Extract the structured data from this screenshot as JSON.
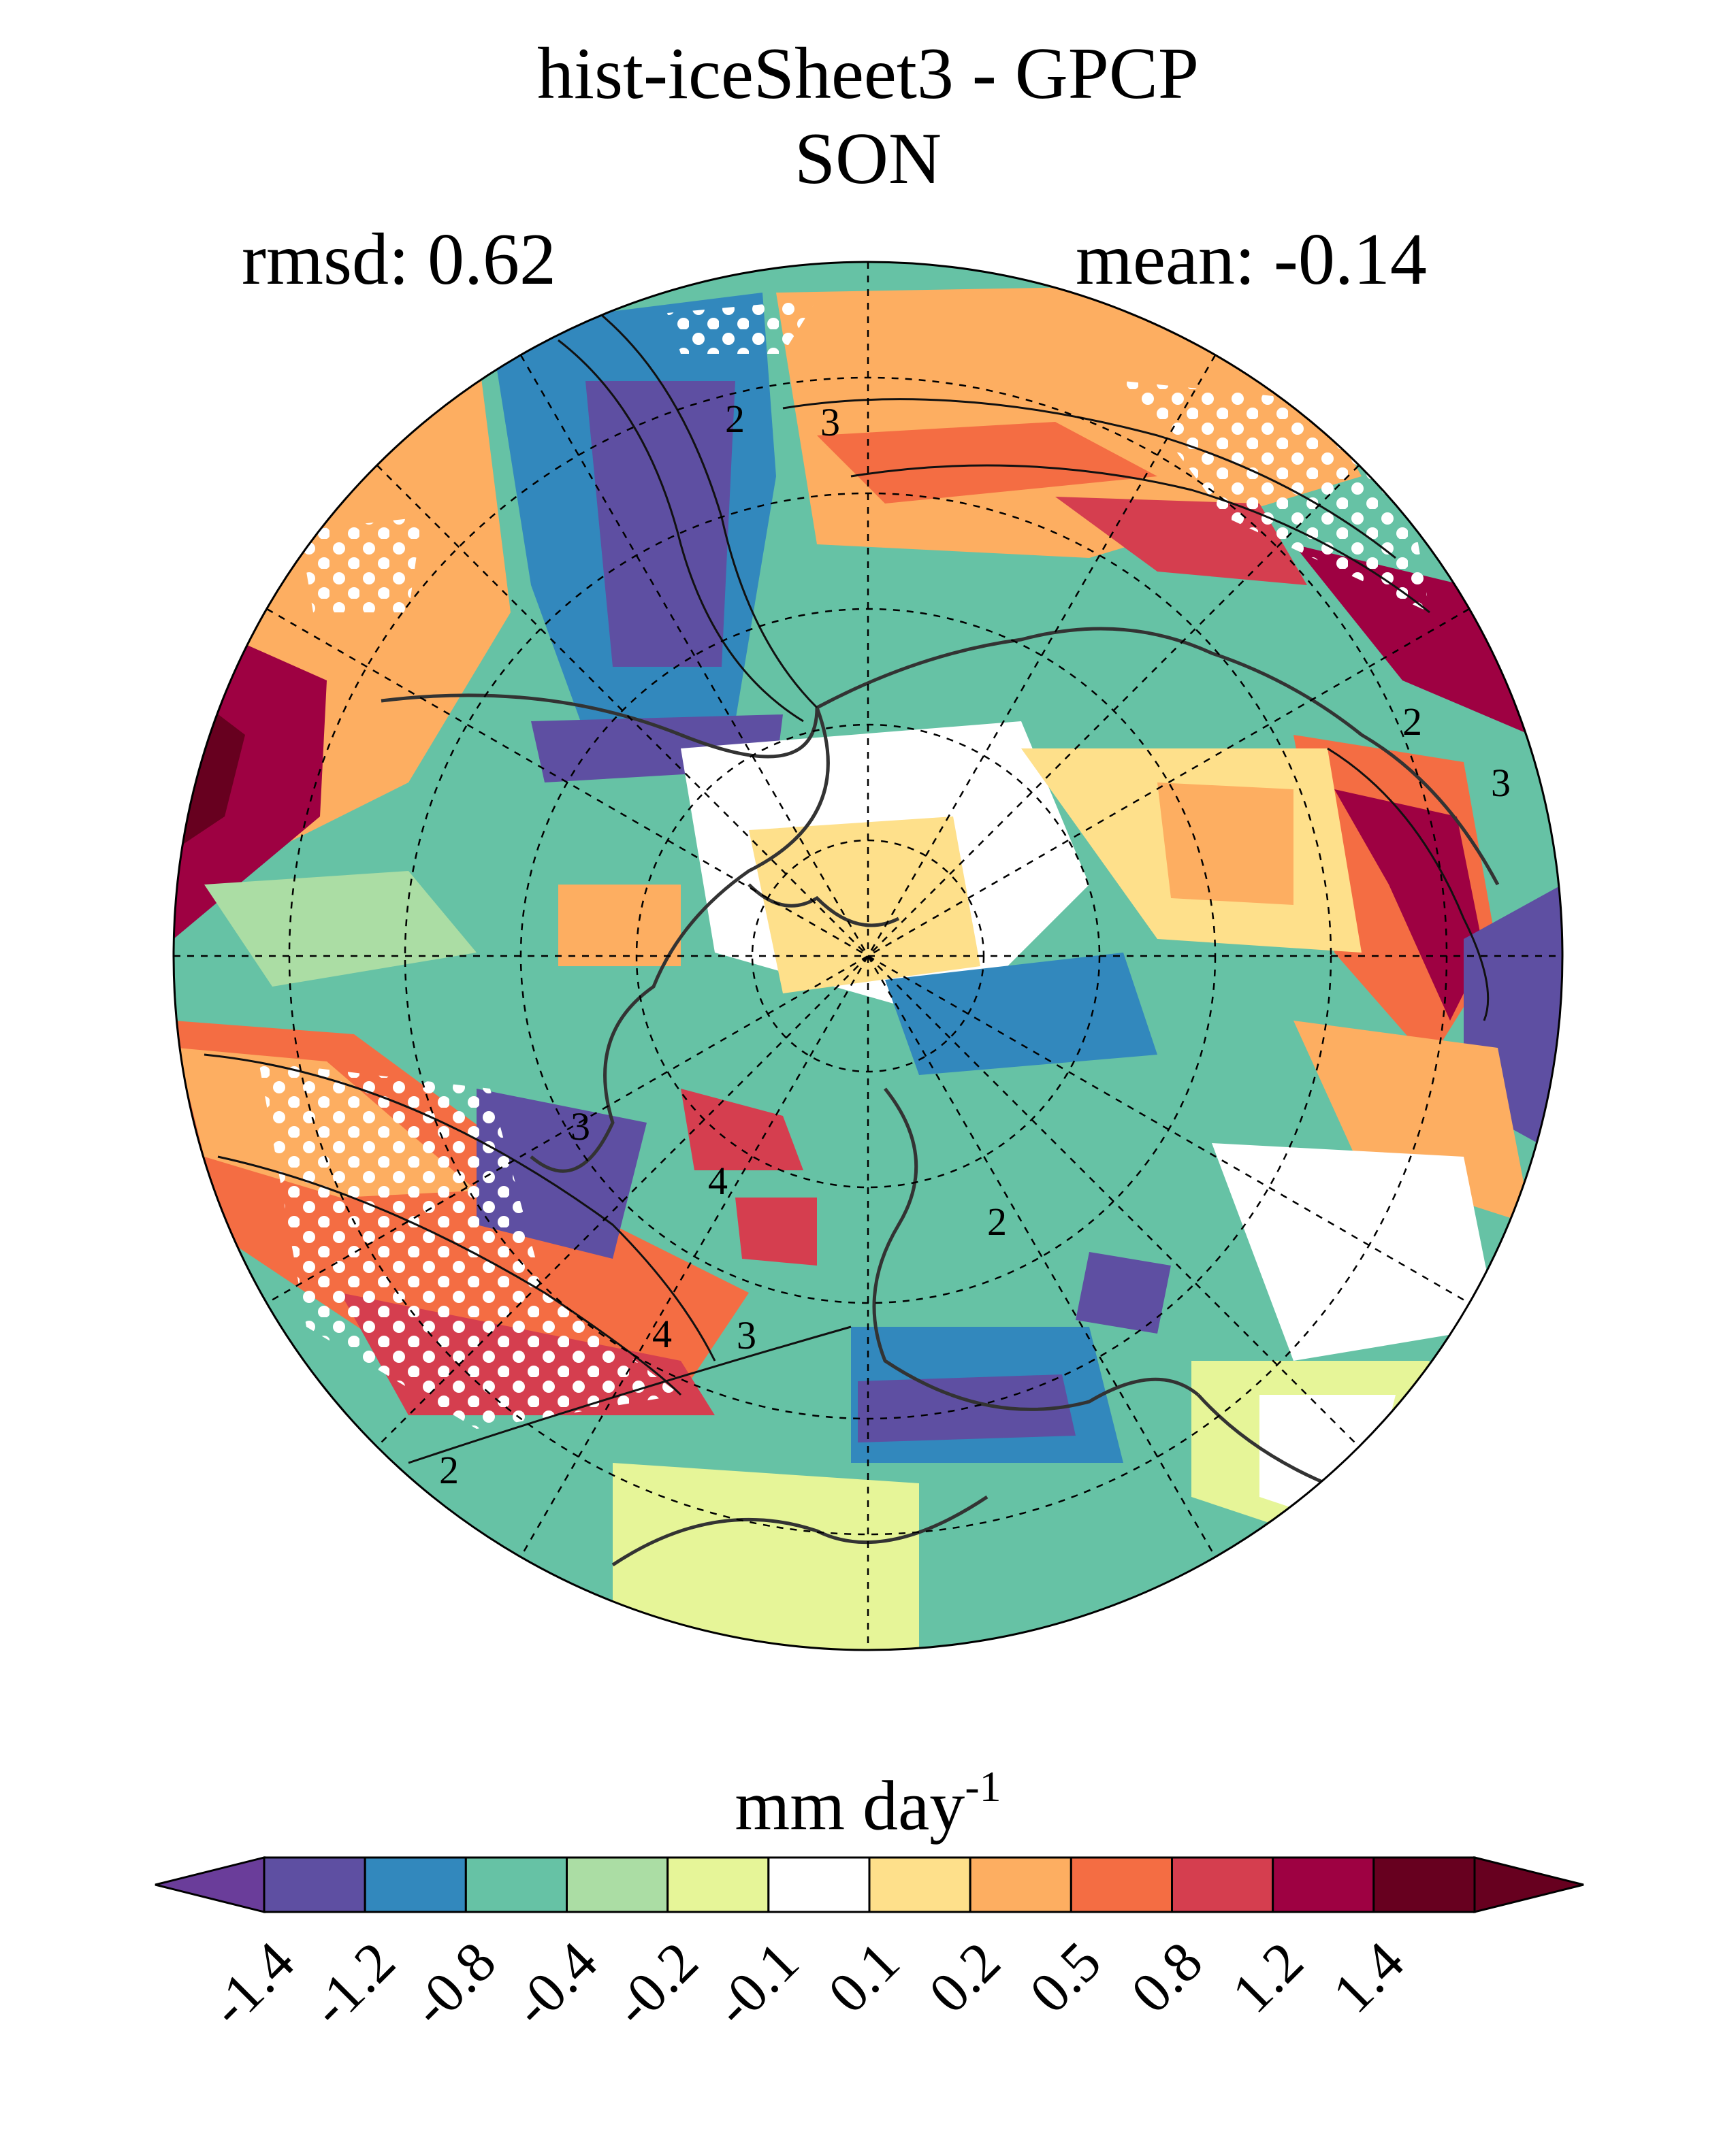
{
  "title": {
    "line1": "hist-iceSheet3 - GPCP",
    "line2": "SON"
  },
  "stats": {
    "rmsd": "rmsd: 0.62",
    "mean": "mean: -0.14"
  },
  "contour_labels": [
    "2",
    "3",
    "2",
    "3",
    "3",
    "4",
    "2",
    "4",
    "3",
    "2"
  ],
  "colorbar": {
    "units_main": "mm day",
    "units_exp": "-1",
    "levels": [
      "-1.4",
      "-1.2",
      "-0.8",
      "-0.4",
      "-0.2",
      "-0.1",
      "0.1",
      "0.2",
      "0.5",
      "0.8",
      "1.2",
      "1.4"
    ],
    "colors": [
      "#5e4fa2",
      "#3288bd",
      "#66c2a5",
      "#abdda4",
      "#e6f598",
      "#ffffff",
      "#fee08b",
      "#fdae61",
      "#f46d43",
      "#d53e4f",
      "#9e0142",
      "#67001f"
    ],
    "under_color": "#6a3d9a",
    "over_color": "#67001f"
  },
  "colors": {
    "land_outline": "#333333",
    "grid": "#000000",
    "stipple": "#ffffff"
  }
}
